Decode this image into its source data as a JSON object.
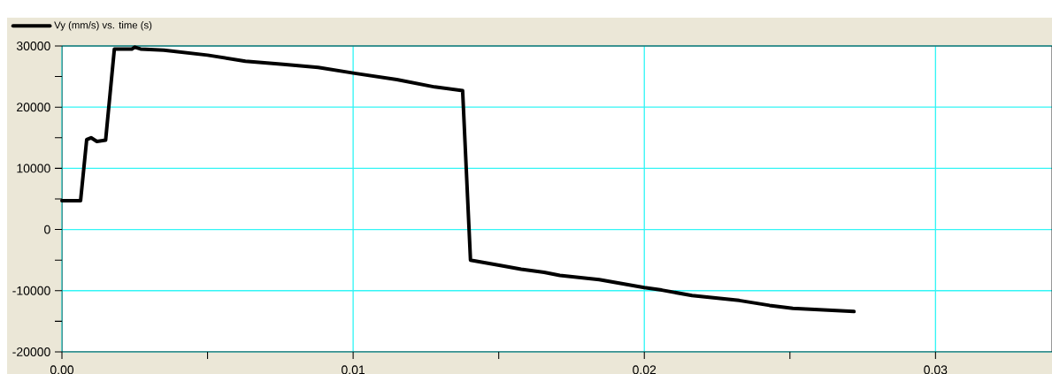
{
  "chart_data": {
    "type": "line",
    "legend": "top left",
    "grid": true,
    "marker": "none",
    "line_style": "solid",
    "xlim": [
      0,
      0.034
    ],
    "ylim": [
      -20000,
      30000
    ],
    "xticks": [
      {
        "value": 0,
        "label": "0.00"
      },
      {
        "value": 0.005,
        "label": null
      },
      0.01,
      {
        "value": 0.015,
        "label": null
      },
      0.02,
      {
        "value": 0.025,
        "label": null
      },
      0.03
    ],
    "yticks": [
      -20000,
      {
        "value": -15000,
        "label": null
      },
      -10000,
      {
        "value": -5000,
        "label": null
      },
      0,
      {
        "value": 5000,
        "label": null
      },
      10000,
      {
        "value": 15000,
        "label": null
      },
      20000,
      {
        "value": 25000,
        "label": null
      },
      30000
    ],
    "series": [
      {
        "name": "Vy (mm/s)  vs. time (s)",
        "color": "#000000",
        "x": [
          0,
          0.00064,
          0.00085,
          0.001,
          0.0012,
          0.0015,
          0.0018,
          0.0024,
          0.0025,
          0.0027,
          0.0035,
          0.005,
          0.0063,
          0.0076,
          0.0088,
          0.0101,
          0.0115,
          0.0128,
          0.01376,
          0.01403,
          0.0151,
          0.01577,
          0.01656,
          0.0171,
          0.01845,
          0.02,
          0.0206,
          0.02164,
          0.02326,
          0.0243,
          0.0251,
          0.02645,
          0.0272
        ],
        "values": [
          4700,
          4700,
          14700,
          15000,
          14400,
          14600,
          29500,
          29500,
          29800,
          29500,
          29300,
          28500,
          27500,
          27000,
          26500,
          25500,
          24500,
          23300,
          22700,
          -5000,
          -5900,
          -6500,
          -7000,
          -7500,
          -8200,
          -9500,
          -9900,
          -10800,
          -11600,
          -12400,
          -12900,
          -13200,
          -13400
        ]
      }
    ]
  }
}
